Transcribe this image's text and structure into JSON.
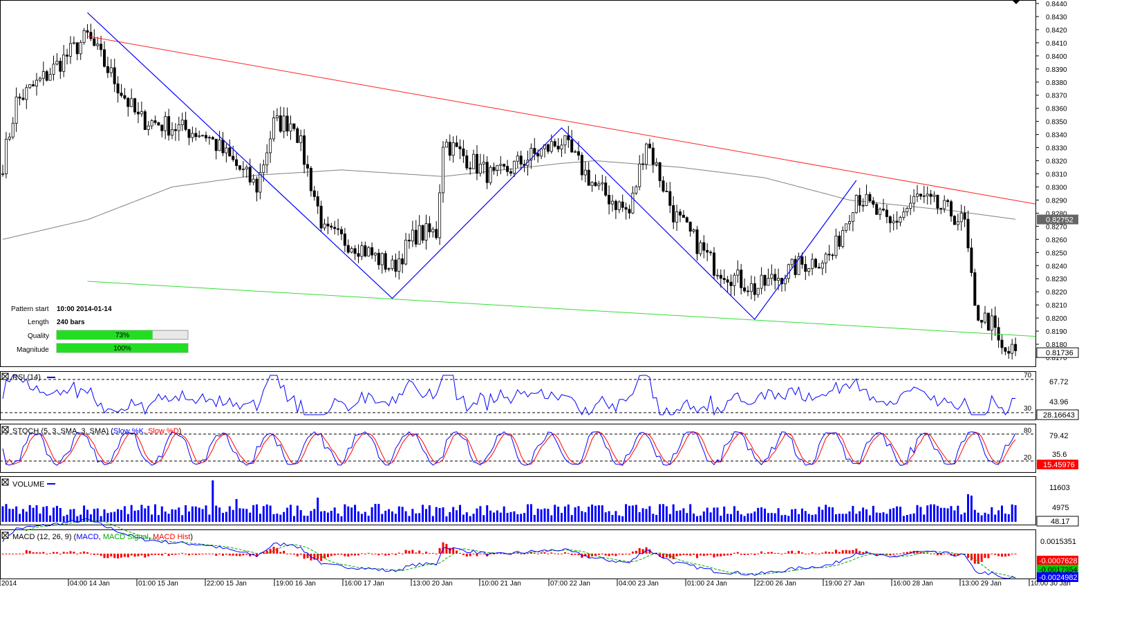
{
  "chart_data": {
    "type": "candlestick",
    "price_axis": {
      "ylim": [
        0.817,
        0.844
      ],
      "ticks": [
        "0.8440",
        "0.8430",
        "0.8420",
        "0.8410",
        "0.8400",
        "0.8390",
        "0.8380",
        "0.8370",
        "0.8360",
        "0.8350",
        "0.8340",
        "0.8330",
        "0.8320",
        "0.8310",
        "0.8300",
        "0.8290",
        "0.8280",
        "0.8270",
        "0.8260",
        "0.8250",
        "0.8240",
        "0.8230",
        "0.8220",
        "0.8210",
        "0.8200",
        "0.8190",
        "0.8180",
        "0.8170"
      ],
      "ma_value": "0.82752",
      "last_price": "0.81736"
    },
    "x_labels": [
      "2014",
      "04:00 14 Jan",
      "01:00 15 Jan",
      "22:00 15 Jan",
      "19:00 16 Jan",
      "16:00 17 Jan",
      "13:00 20 Jan",
      "10:00 21 Jan",
      "07:00 22 Jan",
      "04:00 23 Jan",
      "01:00 24 Jan",
      "22:00 26 Jan",
      "19:00 27 Jan",
      "16:00 28 Jan",
      "13:00 29 Jan",
      "10:00 30 Jan"
    ],
    "zigzag": [
      {
        "bar": 25,
        "price": 0.8433
      },
      {
        "bar": 115,
        "price": 0.8215
      },
      {
        "bar": 165,
        "price": 0.8345
      },
      {
        "bar": 222,
        "price": 0.8199
      },
      {
        "bar": 252,
        "price": 0.8305
      }
    ],
    "resistance_line": [
      {
        "bar": 25,
        "price": 0.8415
      },
      {
        "bar": 300,
        "price": 0.8287
      }
    ],
    "support_line": [
      {
        "bar": 25,
        "price": 0.8228
      },
      {
        "bar": 300,
        "price": 0.8186
      }
    ],
    "pattern_info": {
      "pattern_start_label": "Pattern start",
      "pattern_start_value": "10:00 2014-01-14",
      "length_label": "Length",
      "length_value": "240 bars",
      "quality_label": "Quality",
      "quality_value": 73,
      "quality_text": "73%",
      "magnitude_label": "Magnitude",
      "magnitude_value": 100,
      "magnitude_text": "100%"
    },
    "rsi": {
      "title": "RSI (14)",
      "levels": [
        "70",
        "30"
      ],
      "axis_label": "67.72",
      "mid_label": "43.96",
      "current": "28.16643"
    },
    "stoch": {
      "title_prefix": "STOCH (5, 3, SMA, 3, SMA)",
      "title_k": "Slow %K",
      "title_sep": ", ",
      "title_d": "Slow %D",
      "levels": [
        "80",
        "20"
      ],
      "axis_label": "79.42",
      "mid_label": "35.6",
      "current": "15.45976"
    },
    "volume": {
      "title": "VOLUME",
      "axis_label": "11603",
      "mid_label": "4975",
      "current": "48.17"
    },
    "macd": {
      "title_prefix": "MACD (12, 26, 9)",
      "title_macd": "MACD",
      "title_signal": "MACD Signal",
      "title_hist": "MACD Hist",
      "axis_label": "0.0015351",
      "hist_current": "-0.0007628",
      "signal_current": "-0.0017354",
      "macd_current": "-0.0024982"
    },
    "colors": {
      "zigzag": "#0000ff",
      "resistance": "#ff2020",
      "support": "#33dd33",
      "ma": "#808080",
      "rsi": "#0000ff",
      "stoch_k": "#0000ff",
      "stoch_d": "#ff0000",
      "volume": "#0000ff",
      "macd": "#0000ff",
      "signal": "#00aa00",
      "hist": "#ff0000",
      "bar_green": "#00dd00"
    }
  }
}
